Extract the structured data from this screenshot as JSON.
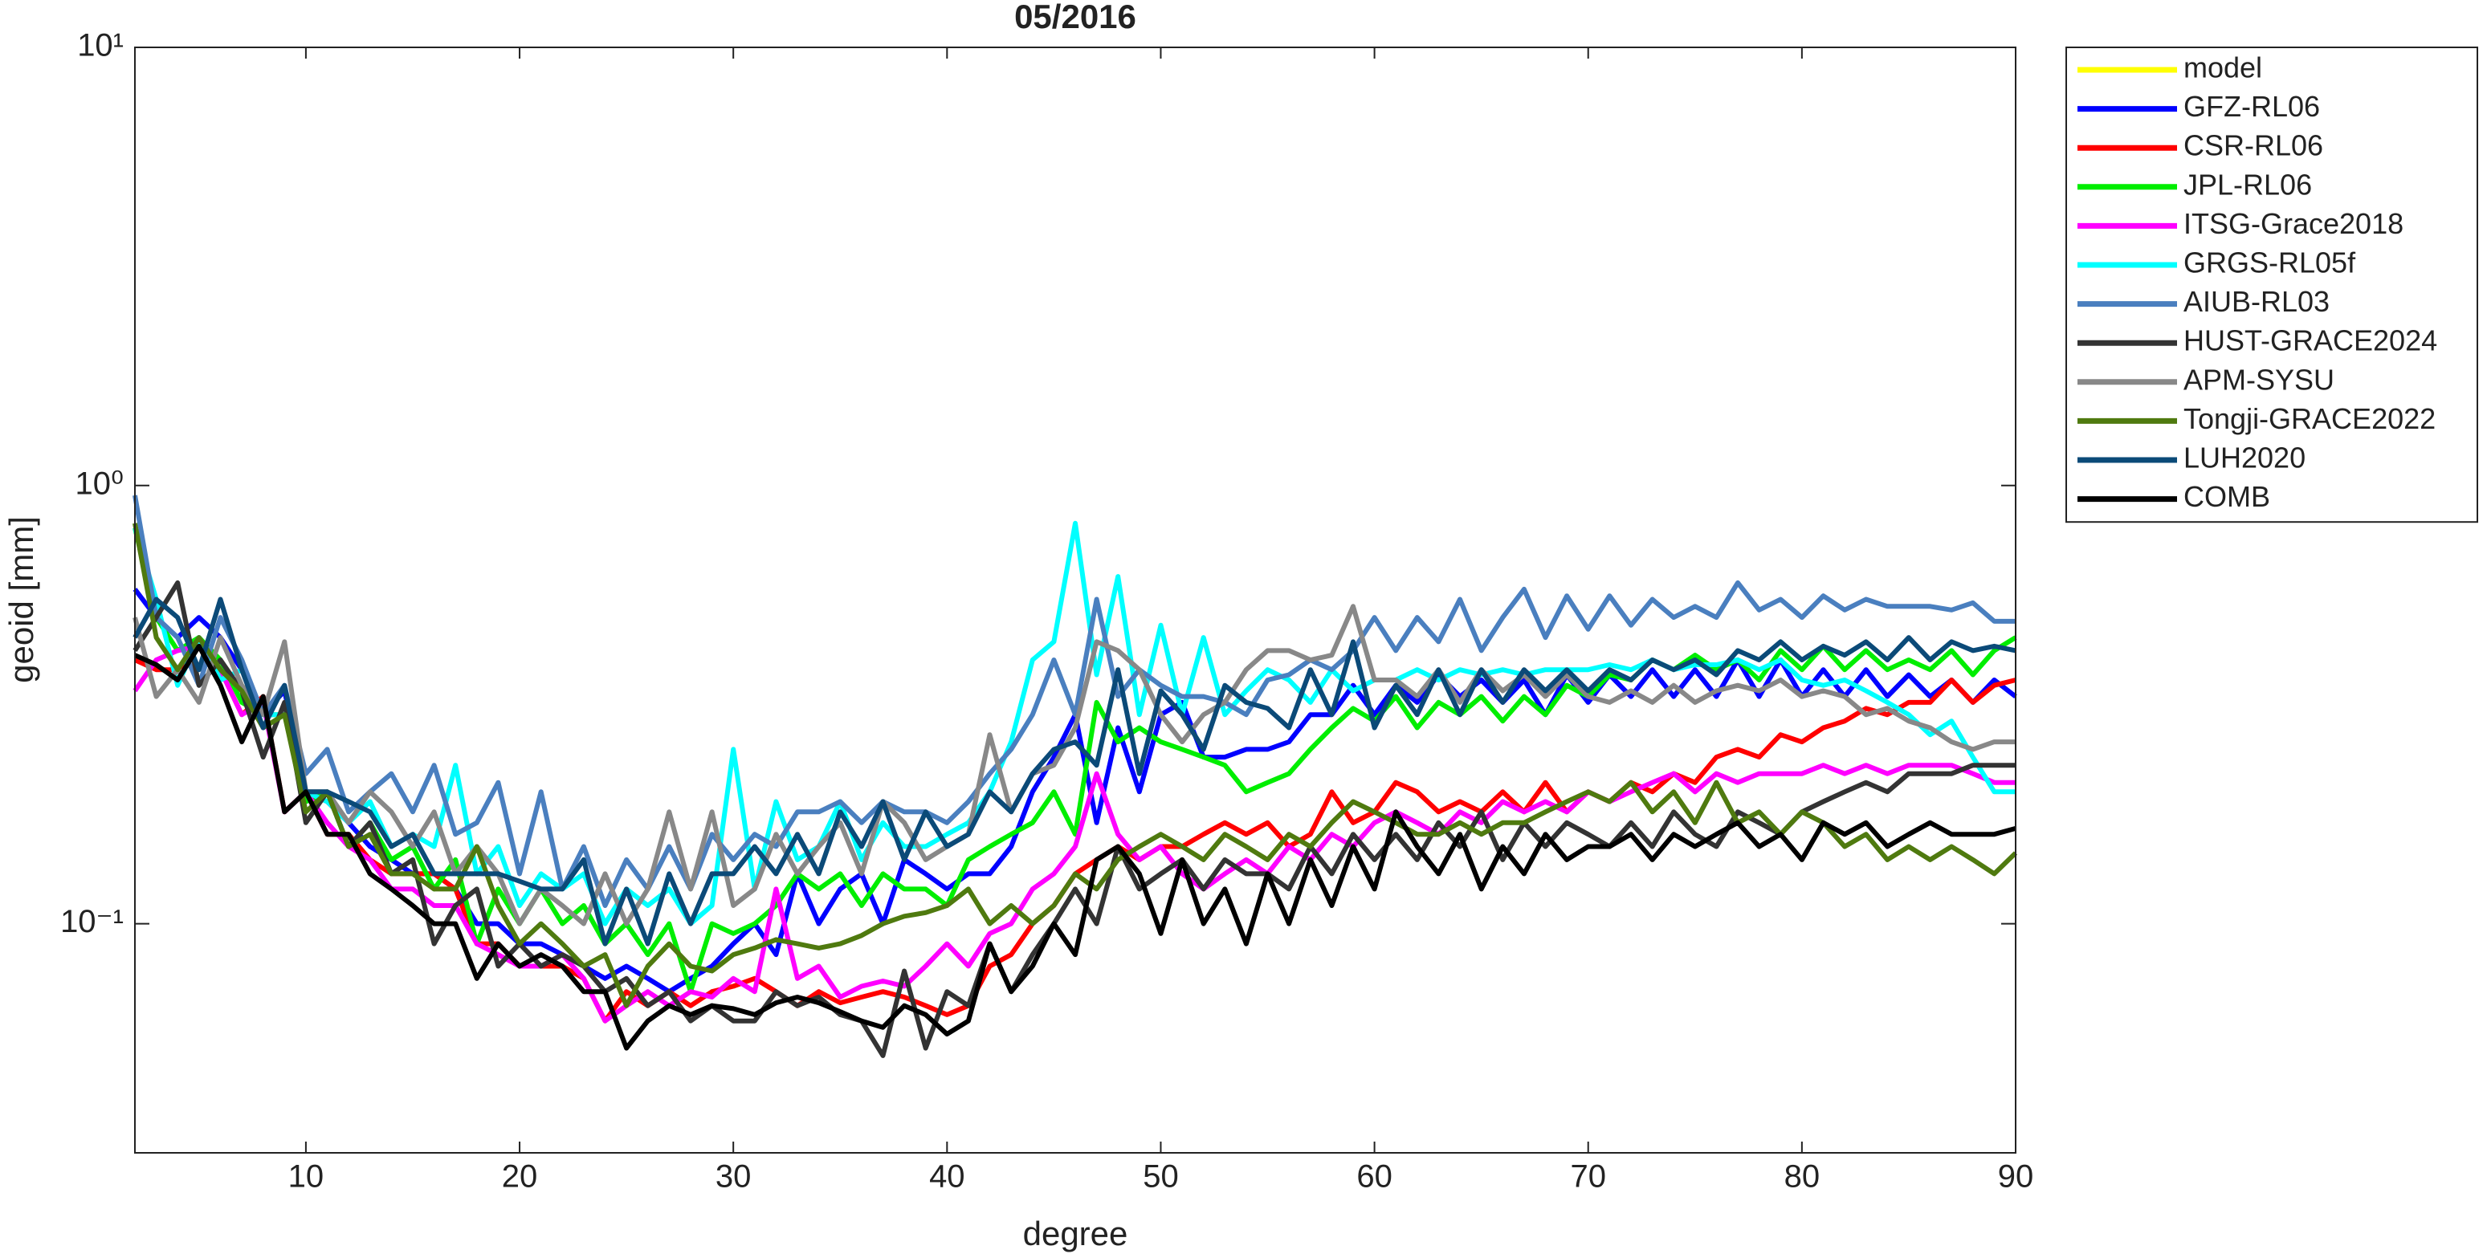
{
  "chart_data": {
    "type": "line",
    "title": "05/2016",
    "xlabel": "degree",
    "ylabel": "geoid [mm]",
    "log_y": true,
    "legend_position": "outside-right",
    "xlim": [
      2,
      90
    ],
    "xticks": [
      10,
      20,
      30,
      40,
      50,
      60,
      70,
      80,
      90
    ],
    "ylim": [
      0.03,
      10
    ],
    "yticks": [
      {
        "value": 0.1,
        "label": "10⁻¹"
      },
      {
        "value": 1,
        "label": "10⁰"
      },
      {
        "value": 10,
        "label": "10¹"
      }
    ],
    "x": [
      2,
      3,
      4,
      5,
      6,
      7,
      8,
      9,
      10,
      11,
      12,
      13,
      14,
      15,
      16,
      17,
      18,
      19,
      20,
      21,
      22,
      23,
      24,
      25,
      26,
      27,
      28,
      29,
      30,
      31,
      32,
      33,
      34,
      35,
      36,
      37,
      38,
      39,
      40,
      41,
      42,
      43,
      44,
      45,
      46,
      47,
      48,
      49,
      50,
      51,
      52,
      53,
      54,
      55,
      56,
      57,
      58,
      59,
      60,
      61,
      62,
      63,
      64,
      65,
      66,
      67,
      68,
      69,
      70,
      71,
      72,
      73,
      74,
      75,
      76,
      77,
      78,
      79,
      80,
      81,
      82,
      83,
      84,
      85,
      86,
      87,
      88,
      89,
      90
    ],
    "series": [
      {
        "name": "model",
        "color": "#ffff00",
        "values": [
          null,
          null,
          null,
          null,
          null,
          null,
          null,
          null,
          null,
          null,
          null,
          null,
          null,
          null,
          null,
          null,
          null,
          null,
          null,
          null,
          null,
          null,
          null,
          null,
          null,
          null,
          null,
          null,
          null,
          null,
          null,
          null,
          null,
          null,
          null,
          null,
          null,
          null,
          null,
          null,
          null,
          null,
          null,
          null,
          null,
          null,
          null,
          null,
          null,
          null,
          null,
          null,
          null,
          null,
          null,
          null,
          null,
          null,
          null,
          null,
          null,
          null,
          null,
          null,
          null,
          null,
          null,
          null,
          null,
          null,
          null,
          null,
          null,
          null,
          null,
          null,
          null,
          null,
          null,
          null,
          null,
          null,
          null,
          null,
          null,
          null,
          null,
          null,
          null
        ]
      },
      {
        "name": "GFZ-RL06",
        "color": "#0000ff",
        "values": [
          0.58,
          0.5,
          0.45,
          0.5,
          0.45,
          0.38,
          0.3,
          0.34,
          0.2,
          0.19,
          0.17,
          0.15,
          0.14,
          0.13,
          0.13,
          0.12,
          0.1,
          0.1,
          0.09,
          0.09,
          0.085,
          0.08,
          0.075,
          0.08,
          0.075,
          0.07,
          0.075,
          0.08,
          0.09,
          0.1,
          0.085,
          0.13,
          0.1,
          0.12,
          0.13,
          0.1,
          0.14,
          0.13,
          0.12,
          0.13,
          0.13,
          0.15,
          0.2,
          0.24,
          0.3,
          0.17,
          0.28,
          0.2,
          0.3,
          0.32,
          0.24,
          0.24,
          0.25,
          0.25,
          0.26,
          0.3,
          0.3,
          0.35,
          0.3,
          0.35,
          0.32,
          0.37,
          0.33,
          0.36,
          0.32,
          0.36,
          0.3,
          0.37,
          0.32,
          0.37,
          0.33,
          0.38,
          0.33,
          0.38,
          0.33,
          0.4,
          0.33,
          0.4,
          0.33,
          0.38,
          0.33,
          0.38,
          0.33,
          0.37,
          0.33,
          0.36,
          0.32,
          0.36,
          0.33
        ]
      },
      {
        "name": "CSR-RL06",
        "color": "#ff0000",
        "values": [
          0.4,
          0.38,
          0.38,
          0.43,
          0.38,
          0.3,
          0.33,
          0.18,
          0.2,
          0.16,
          0.16,
          0.14,
          0.13,
          0.13,
          0.13,
          0.12,
          0.09,
          0.09,
          0.08,
          0.08,
          0.08,
          0.075,
          0.06,
          0.07,
          0.065,
          0.07,
          0.065,
          0.07,
          0.072,
          0.075,
          0.07,
          0.065,
          0.07,
          0.066,
          0.068,
          0.07,
          0.068,
          0.065,
          0.062,
          0.065,
          0.08,
          0.085,
          0.1,
          0.11,
          0.13,
          0.14,
          0.15,
          0.14,
          0.15,
          0.15,
          0.16,
          0.17,
          0.16,
          0.17,
          0.15,
          0.16,
          0.2,
          0.17,
          0.18,
          0.21,
          0.2,
          0.18,
          0.19,
          0.18,
          0.2,
          0.18,
          0.21,
          0.18,
          0.2,
          0.19,
          0.21,
          0.2,
          0.22,
          0.21,
          0.24,
          0.25,
          0.24,
          0.27,
          0.26,
          0.28,
          0.29,
          0.31,
          0.3,
          0.32,
          0.32,
          0.36,
          0.32,
          0.35,
          0.36
        ]
      },
      {
        "name": "JPL-RL06",
        "color": "#00ee00",
        "values": [
          0.8,
          0.5,
          0.42,
          0.45,
          0.4,
          0.32,
          0.3,
          0.3,
          0.19,
          0.2,
          0.15,
          0.17,
          0.14,
          0.15,
          0.12,
          0.14,
          0.09,
          0.12,
          0.1,
          0.12,
          0.1,
          0.11,
          0.09,
          0.1,
          0.085,
          0.1,
          0.07,
          0.1,
          0.095,
          0.1,
          0.11,
          0.13,
          0.12,
          0.13,
          0.11,
          0.13,
          0.12,
          0.12,
          0.11,
          0.14,
          0.15,
          0.16,
          0.17,
          0.2,
          0.16,
          0.32,
          0.26,
          0.28,
          0.26,
          0.25,
          0.24,
          0.23,
          0.2,
          0.21,
          0.22,
          0.25,
          0.28,
          0.31,
          0.29,
          0.33,
          0.28,
          0.32,
          0.3,
          0.33,
          0.29,
          0.33,
          0.3,
          0.35,
          0.33,
          0.37,
          0.36,
          0.4,
          0.38,
          0.41,
          0.38,
          0.4,
          0.36,
          0.42,
          0.38,
          0.43,
          0.38,
          0.42,
          0.38,
          0.4,
          0.38,
          0.42,
          0.37,
          0.42,
          0.45
        ]
      },
      {
        "name": "ITSG-Grace2018",
        "color": "#ff00ff",
        "values": [
          0.34,
          0.4,
          0.42,
          0.43,
          0.38,
          0.3,
          0.32,
          0.18,
          0.2,
          0.17,
          0.15,
          0.14,
          0.12,
          0.12,
          0.11,
          0.11,
          0.09,
          0.085,
          0.08,
          0.08,
          0.085,
          0.075,
          0.06,
          0.065,
          0.07,
          0.065,
          0.07,
          0.068,
          0.075,
          0.07,
          0.12,
          0.075,
          0.08,
          0.068,
          0.072,
          0.074,
          0.072,
          0.08,
          0.09,
          0.08,
          0.095,
          0.1,
          0.12,
          0.13,
          0.15,
          0.22,
          0.16,
          0.14,
          0.15,
          0.13,
          0.12,
          0.13,
          0.14,
          0.13,
          0.15,
          0.14,
          0.16,
          0.15,
          0.17,
          0.18,
          0.17,
          0.16,
          0.18,
          0.17,
          0.19,
          0.18,
          0.19,
          0.18,
          0.2,
          0.19,
          0.2,
          0.21,
          0.22,
          0.2,
          0.22,
          0.21,
          0.22,
          0.22,
          0.22,
          0.23,
          0.22,
          0.23,
          0.22,
          0.23,
          0.23,
          0.23,
          0.22,
          0.21,
          0.21
        ]
      },
      {
        "name": "GRGS-RL05f",
        "color": "#00ffff",
        "values": [
          0.8,
          0.55,
          0.35,
          0.45,
          0.36,
          0.38,
          0.3,
          0.3,
          0.2,
          0.19,
          0.17,
          0.19,
          0.15,
          0.16,
          0.15,
          0.23,
          0.13,
          0.15,
          0.11,
          0.13,
          0.12,
          0.13,
          0.1,
          0.12,
          0.11,
          0.12,
          0.1,
          0.11,
          0.25,
          0.12,
          0.19,
          0.14,
          0.15,
          0.19,
          0.14,
          0.17,
          0.15,
          0.15,
          0.16,
          0.17,
          0.2,
          0.26,
          0.4,
          0.44,
          0.82,
          0.37,
          0.62,
          0.3,
          0.48,
          0.3,
          0.45,
          0.3,
          0.34,
          0.38,
          0.36,
          0.32,
          0.38,
          0.34,
          0.36,
          0.36,
          0.38,
          0.36,
          0.38,
          0.37,
          0.38,
          0.37,
          0.38,
          0.38,
          0.38,
          0.39,
          0.38,
          0.4,
          0.38,
          0.39,
          0.39,
          0.4,
          0.38,
          0.4,
          0.36,
          0.35,
          0.36,
          0.34,
          0.32,
          0.3,
          0.27,
          0.29,
          0.24,
          0.2,
          0.2
        ]
      },
      {
        "name": "AIUB-RL03",
        "color": "#4a7fbf",
        "values": [
          0.95,
          0.5,
          0.45,
          0.35,
          0.5,
          0.4,
          0.3,
          0.35,
          0.22,
          0.25,
          0.18,
          0.2,
          0.22,
          0.18,
          0.23,
          0.16,
          0.17,
          0.21,
          0.13,
          0.2,
          0.12,
          0.15,
          0.11,
          0.14,
          0.12,
          0.15,
          0.12,
          0.16,
          0.14,
          0.16,
          0.15,
          0.18,
          0.18,
          0.19,
          0.17,
          0.19,
          0.18,
          0.18,
          0.17,
          0.19,
          0.22,
          0.25,
          0.3,
          0.4,
          0.3,
          0.55,
          0.33,
          0.38,
          0.35,
          0.33,
          0.33,
          0.32,
          0.3,
          0.36,
          0.37,
          0.4,
          0.38,
          0.42,
          0.5,
          0.42,
          0.5,
          0.44,
          0.55,
          0.42,
          0.5,
          0.58,
          0.45,
          0.56,
          0.47,
          0.56,
          0.48,
          0.55,
          0.5,
          0.53,
          0.5,
          0.6,
          0.52,
          0.55,
          0.5,
          0.56,
          0.52,
          0.55,
          0.53,
          0.53,
          0.53,
          0.52,
          0.54,
          0.49,
          0.49
        ]
      },
      {
        "name": "HUST-GRACE2024",
        "color": "#333333",
        "values": [
          0.42,
          0.5,
          0.6,
          0.35,
          0.4,
          0.34,
          0.24,
          0.32,
          0.17,
          0.2,
          0.15,
          0.17,
          0.13,
          0.14,
          0.09,
          0.11,
          0.12,
          0.08,
          0.09,
          0.08,
          0.085,
          0.08,
          0.07,
          0.075,
          0.065,
          0.07,
          0.06,
          0.065,
          0.06,
          0.06,
          0.07,
          0.065,
          0.068,
          0.062,
          0.06,
          0.05,
          0.078,
          0.052,
          0.07,
          0.065,
          0.09,
          0.07,
          0.085,
          0.1,
          0.12,
          0.1,
          0.15,
          0.12,
          0.13,
          0.14,
          0.12,
          0.14,
          0.13,
          0.13,
          0.12,
          0.15,
          0.13,
          0.16,
          0.14,
          0.16,
          0.14,
          0.17,
          0.15,
          0.18,
          0.14,
          0.17,
          0.15,
          0.17,
          0.16,
          0.15,
          0.17,
          0.15,
          0.18,
          0.16,
          0.15,
          0.18,
          0.17,
          0.16,
          0.18,
          0.19,
          0.2,
          0.21,
          0.2,
          0.22,
          0.22,
          0.22,
          0.23,
          0.23,
          0.23
        ]
      },
      {
        "name": "APM-SYSU",
        "color": "#888888",
        "values": [
          0.5,
          0.33,
          0.38,
          0.32,
          0.45,
          0.35,
          0.3,
          0.44,
          0.2,
          0.2,
          0.17,
          0.2,
          0.18,
          0.15,
          0.18,
          0.13,
          0.15,
          0.13,
          0.1,
          0.12,
          0.11,
          0.1,
          0.13,
          0.1,
          0.12,
          0.18,
          0.12,
          0.18,
          0.11,
          0.12,
          0.16,
          0.13,
          0.15,
          0.17,
          0.13,
          0.19,
          0.17,
          0.14,
          0.15,
          0.16,
          0.27,
          0.18,
          0.22,
          0.23,
          0.28,
          0.44,
          0.42,
          0.38,
          0.3,
          0.26,
          0.3,
          0.32,
          0.38,
          0.42,
          0.42,
          0.4,
          0.41,
          0.53,
          0.36,
          0.36,
          0.33,
          0.38,
          0.32,
          0.38,
          0.34,
          0.37,
          0.33,
          0.37,
          0.33,
          0.32,
          0.34,
          0.32,
          0.35,
          0.32,
          0.34,
          0.35,
          0.34,
          0.36,
          0.33,
          0.34,
          0.33,
          0.3,
          0.31,
          0.29,
          0.28,
          0.26,
          0.25,
          0.26,
          0.26
        ]
      },
      {
        "name": "Tongji-GRACE2022",
        "color": "#4f7a0f",
        "values": [
          0.82,
          0.45,
          0.38,
          0.45,
          0.38,
          0.34,
          0.28,
          0.3,
          0.18,
          0.2,
          0.15,
          0.16,
          0.13,
          0.13,
          0.12,
          0.12,
          0.15,
          0.11,
          0.09,
          0.1,
          0.09,
          0.08,
          0.085,
          0.065,
          0.08,
          0.09,
          0.08,
          0.078,
          0.085,
          0.088,
          0.092,
          0.09,
          0.088,
          0.09,
          0.094,
          0.1,
          0.104,
          0.106,
          0.11,
          0.12,
          0.1,
          0.11,
          0.1,
          0.11,
          0.13,
          0.12,
          0.14,
          0.15,
          0.16,
          0.15,
          0.14,
          0.16,
          0.15,
          0.14,
          0.16,
          0.15,
          0.17,
          0.19,
          0.18,
          0.17,
          0.16,
          0.16,
          0.17,
          0.16,
          0.17,
          0.17,
          0.18,
          0.19,
          0.2,
          0.19,
          0.21,
          0.18,
          0.2,
          0.17,
          0.21,
          0.17,
          0.18,
          0.16,
          0.18,
          0.17,
          0.15,
          0.16,
          0.14,
          0.15,
          0.14,
          0.15,
          0.14,
          0.13,
          0.145
        ]
      },
      {
        "name": "LUH2020",
        "color": "#0b4a78",
        "values": [
          0.45,
          0.55,
          0.5,
          0.38,
          0.55,
          0.38,
          0.28,
          0.35,
          0.2,
          0.2,
          0.19,
          0.18,
          0.15,
          0.16,
          0.13,
          0.13,
          0.13,
          0.13,
          0.125,
          0.12,
          0.12,
          0.14,
          0.09,
          0.12,
          0.09,
          0.13,
          0.1,
          0.13,
          0.13,
          0.15,
          0.13,
          0.16,
          0.13,
          0.18,
          0.15,
          0.19,
          0.14,
          0.18,
          0.15,
          0.16,
          0.2,
          0.18,
          0.22,
          0.25,
          0.26,
          0.23,
          0.38,
          0.22,
          0.34,
          0.3,
          0.25,
          0.35,
          0.32,
          0.31,
          0.28,
          0.38,
          0.3,
          0.44,
          0.28,
          0.35,
          0.3,
          0.38,
          0.3,
          0.38,
          0.32,
          0.38,
          0.34,
          0.38,
          0.34,
          0.38,
          0.36,
          0.4,
          0.38,
          0.4,
          0.37,
          0.42,
          0.4,
          0.44,
          0.4,
          0.43,
          0.41,
          0.44,
          0.4,
          0.45,
          0.4,
          0.44,
          0.42,
          0.43,
          0.42
        ]
      },
      {
        "name": "COMB",
        "color": "#000000",
        "values": [
          0.41,
          0.39,
          0.36,
          0.43,
          0.35,
          0.26,
          0.33,
          0.18,
          0.2,
          0.16,
          0.16,
          0.13,
          0.12,
          0.11,
          0.1,
          0.1,
          0.075,
          0.09,
          0.08,
          0.085,
          0.08,
          0.07,
          0.07,
          0.052,
          0.06,
          0.065,
          0.062,
          0.065,
          0.064,
          0.062,
          0.066,
          0.068,
          0.066,
          0.063,
          0.06,
          0.058,
          0.065,
          0.062,
          0.056,
          0.06,
          0.09,
          0.07,
          0.08,
          0.1,
          0.085,
          0.14,
          0.15,
          0.13,
          0.095,
          0.14,
          0.1,
          0.12,
          0.09,
          0.13,
          0.1,
          0.14,
          0.11,
          0.15,
          0.12,
          0.18,
          0.15,
          0.13,
          0.16,
          0.12,
          0.15,
          0.13,
          0.16,
          0.14,
          0.15,
          0.15,
          0.16,
          0.14,
          0.16,
          0.15,
          0.16,
          0.17,
          0.15,
          0.16,
          0.14,
          0.17,
          0.16,
          0.17,
          0.15,
          0.16,
          0.17,
          0.16,
          0.16,
          0.16,
          0.165
        ]
      }
    ]
  }
}
